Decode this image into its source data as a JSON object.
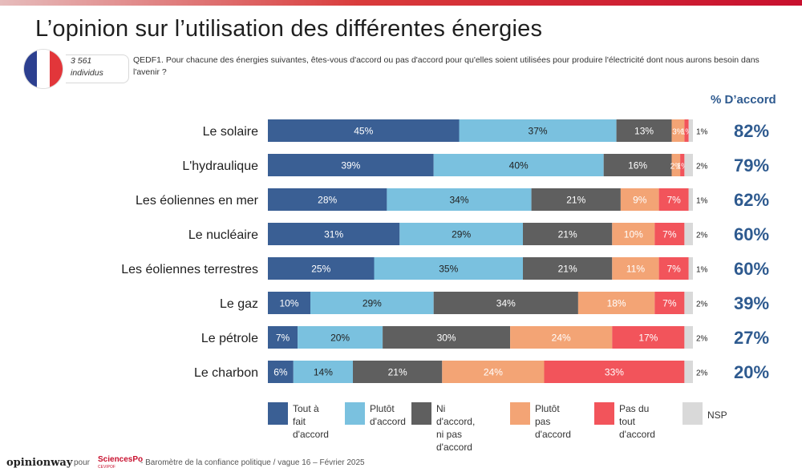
{
  "title": "L’opinion sur l’utilisation des différentes énergies",
  "sample": {
    "count": "3 561",
    "unit": "individus"
  },
  "question": "QEDF1. Pour chacune des énergies suivantes, êtes-vous d'accord ou pas d'accord pour qu'elles soient utilisées pour produire l'électricité dont nous aurons besoin dans l'avenir ?",
  "pct_header": "% D’accord",
  "footer": {
    "brand": "opinionway",
    "pour": "pour",
    "partner": "SciencesPo",
    "partner_sub": "CEVIPOF",
    "text": "- Baromètre de la confiance politique / vague 16 – Février 2025"
  },
  "colors": {
    "flag_blue": "#2c3f8f",
    "flag_white": "#ffffff",
    "flag_red": "#e2363a"
  },
  "chart_data": {
    "type": "bar",
    "orientation": "horizontal",
    "stacked": true,
    "categories": [
      "Le solaire",
      "L'hydraulique",
      "Les éoliennes en mer",
      "Le nucléaire",
      "Les éoliennes terrestres",
      "Le gaz",
      "Le pétrole",
      "Le charbon"
    ],
    "series": [
      {
        "name": "Tout à fait\nd'accord",
        "color": "#3a5f94",
        "label_color": "#ffffff",
        "values": [
          45,
          39,
          28,
          31,
          25,
          10,
          7,
          6
        ]
      },
      {
        "name": "Plutôt\nd'accord",
        "color": "#7ac1df",
        "label_color": "#222222",
        "values": [
          37,
          40,
          34,
          29,
          35,
          29,
          20,
          14
        ]
      },
      {
        "name": "Ni d'accord,\nni pas d'accord",
        "color": "#5f5f5f",
        "label_color": "#ffffff",
        "values": [
          13,
          16,
          21,
          21,
          21,
          34,
          30,
          21
        ]
      },
      {
        "name": "Plutôt pas\nd'accord",
        "color": "#f3a475",
        "label_color": "#ffffff",
        "values": [
          3,
          2,
          9,
          10,
          11,
          18,
          24,
          24
        ]
      },
      {
        "name": "Pas du tout\nd'accord",
        "color": "#f2545b",
        "label_color": "#ffffff",
        "values": [
          1,
          1,
          7,
          7,
          7,
          7,
          17,
          33
        ]
      },
      {
        "name": "NSP",
        "color": "#d9d9d9",
        "label_color": "#222222",
        "values": [
          1,
          2,
          1,
          2,
          1,
          2,
          2,
          2
        ]
      }
    ],
    "agree_totals": [
      "82%",
      "79%",
      "62%",
      "60%",
      "60%",
      "39%",
      "27%",
      "20%"
    ],
    "value_suffix": "%",
    "xlim": [
      0,
      100
    ],
    "legend_position": "bottom"
  }
}
